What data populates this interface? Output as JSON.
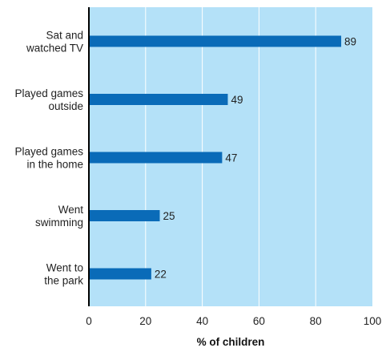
{
  "chart_data": {
    "type": "bar",
    "orientation": "horizontal",
    "categories": [
      [
        "Sat and",
        "watched TV"
      ],
      [
        "Played games",
        "outside"
      ],
      [
        "Played games",
        "in the home"
      ],
      [
        "Went",
        "swimming"
      ],
      [
        "Went to",
        "the park"
      ]
    ],
    "values": [
      89,
      49,
      47,
      25,
      22
    ],
    "xlabel": "% of children",
    "ylabel": "",
    "xlim": [
      0,
      100
    ],
    "xticks": [
      0,
      20,
      40,
      60,
      80,
      100
    ],
    "grid": "vertical",
    "data_labels": true
  },
  "colors": {
    "plot_background": "#b4e1f8",
    "bar": "#0a6bb8",
    "gridline": "#ffffff",
    "axis": "#000000"
  }
}
